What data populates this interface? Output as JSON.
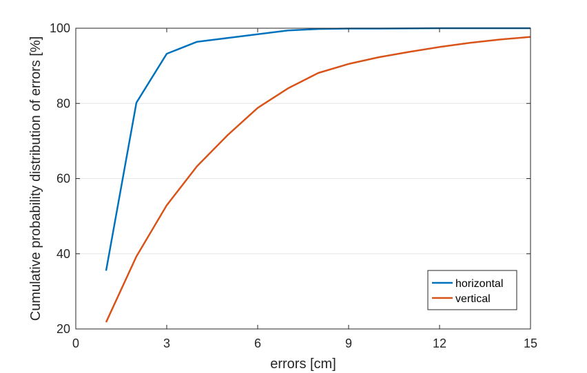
{
  "chart_data": {
    "type": "line",
    "title": "",
    "xlabel": "errors [cm]",
    "ylabel": "Cumulative probability distribution of  errors [%]",
    "xlim": [
      0,
      15
    ],
    "ylim": [
      20,
      100
    ],
    "xticks": [
      0,
      3,
      6,
      9,
      12,
      15
    ],
    "yticks": [
      20,
      40,
      60,
      80,
      100
    ],
    "grid": true,
    "legend_position": "bottom-right",
    "series": [
      {
        "name": "horizontal",
        "color": "#0072BD",
        "x": [
          1,
          2,
          3,
          4,
          5,
          6,
          7,
          8,
          9,
          10,
          11,
          12,
          13,
          14,
          15
        ],
        "y": [
          35.5,
          80.2,
          93.2,
          96.4,
          97.4,
          98.4,
          99.4,
          99.8,
          99.9,
          99.9,
          99.95,
          100,
          100,
          100,
          100
        ]
      },
      {
        "name": "vertical",
        "color": "#D95319",
        "x": [
          1,
          2,
          3,
          4,
          5,
          6,
          7,
          8,
          9,
          10,
          11,
          12,
          13,
          14,
          15
        ],
        "y": [
          21.8,
          39.3,
          52.9,
          63.3,
          71.5,
          78.8,
          84.0,
          88.1,
          90.5,
          92.3,
          93.7,
          95.0,
          96.1,
          97.0,
          97.7
        ]
      }
    ]
  }
}
